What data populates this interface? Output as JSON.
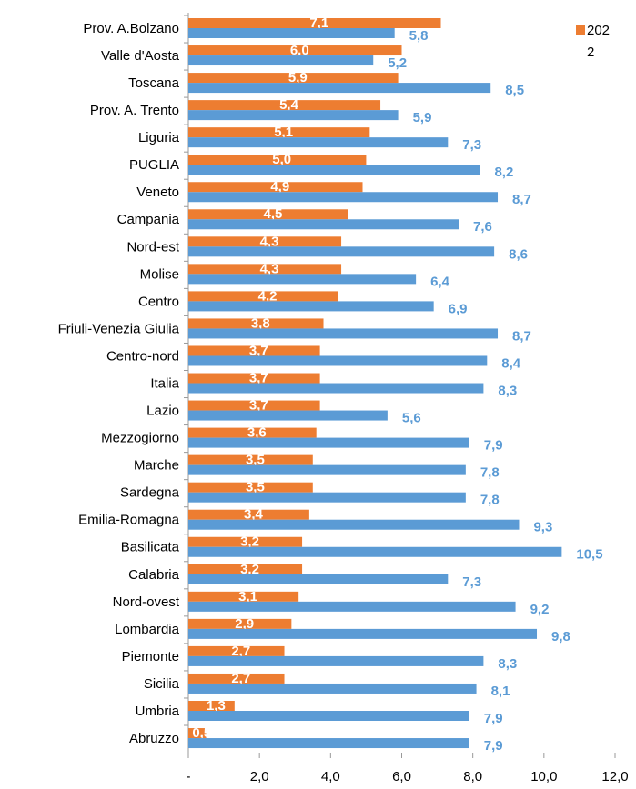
{
  "chart_data": {
    "type": "bar",
    "orientation": "horizontal",
    "categories": [
      "Prov. A.Bolzano",
      "Valle d'Aosta",
      "Toscana",
      "Prov. A. Trento",
      "Liguria",
      "PUGLIA",
      "Veneto",
      "Campania",
      "Nord-est",
      "Molise",
      "Centro",
      "Friuli-Venezia Giulia",
      "Centro-nord",
      "Italia",
      "Lazio",
      "Mezzogiorno",
      "Marche",
      "Sardegna",
      "Emilia-Romagna",
      "Basilicata",
      "Calabria",
      "Nord-ovest",
      "Lombardia",
      "Piemonte",
      "Sicilia",
      "Umbria",
      "Abruzzo"
    ],
    "series": [
      {
        "name": "2022",
        "color": "#ed7d31",
        "values": [
          7.1,
          6.0,
          5.9,
          5.4,
          5.1,
          5.0,
          4.9,
          4.5,
          4.3,
          4.3,
          4.2,
          3.8,
          3.7,
          3.7,
          3.7,
          3.6,
          3.5,
          3.5,
          3.4,
          3.2,
          3.2,
          3.1,
          2.9,
          2.7,
          2.7,
          1.3,
          0.5
        ],
        "value_labels": [
          "7,1",
          "6,0",
          "5,9",
          "5,4",
          "5,1",
          "5,0",
          "4,9",
          "4,5",
          "4,3",
          "4,3",
          "4,2",
          "3,8",
          "3,7",
          "3,7",
          "3,7",
          "3,6",
          "3,5",
          "3,5",
          "3,4",
          "3,2",
          "3,2",
          "3,1",
          "2,9",
          "2,7",
          "2,7",
          "1,3",
          "0,5"
        ]
      },
      {
        "color": "#5b9bd5",
        "values": [
          5.8,
          5.2,
          8.5,
          5.9,
          7.3,
          8.2,
          8.7,
          7.6,
          8.6,
          6.4,
          6.9,
          8.7,
          8.4,
          8.3,
          5.6,
          7.9,
          7.8,
          7.8,
          9.3,
          10.5,
          7.3,
          9.2,
          9.8,
          8.3,
          8.1,
          7.9,
          7.9
        ],
        "value_labels": [
          "5,8",
          "5,2",
          "8,5",
          "5,9",
          "7,3",
          "8,2",
          "8,7",
          "7,6",
          "8,6",
          "6,4",
          "6,9",
          "8,7",
          "8,4",
          "8,3",
          "5,6",
          "7,9",
          "7,8",
          "7,8",
          "9,3",
          "10,5",
          "7,3",
          "9,2",
          "9,8",
          "8,3",
          "8,1",
          "7,9",
          "7,9"
        ]
      }
    ],
    "xlim": [
      0,
      12
    ],
    "xticks": [
      {
        "value": 0,
        "label": "-"
      },
      {
        "value": 2,
        "label": "2,0"
      },
      {
        "value": 4,
        "label": "4,0"
      },
      {
        "value": 6,
        "label": "6,0"
      },
      {
        "value": 8,
        "label": "8,0"
      },
      {
        "value": 10,
        "label": "10,0"
      },
      {
        "value": 12,
        "label": "12,0"
      }
    ],
    "legend": "top-right"
  }
}
